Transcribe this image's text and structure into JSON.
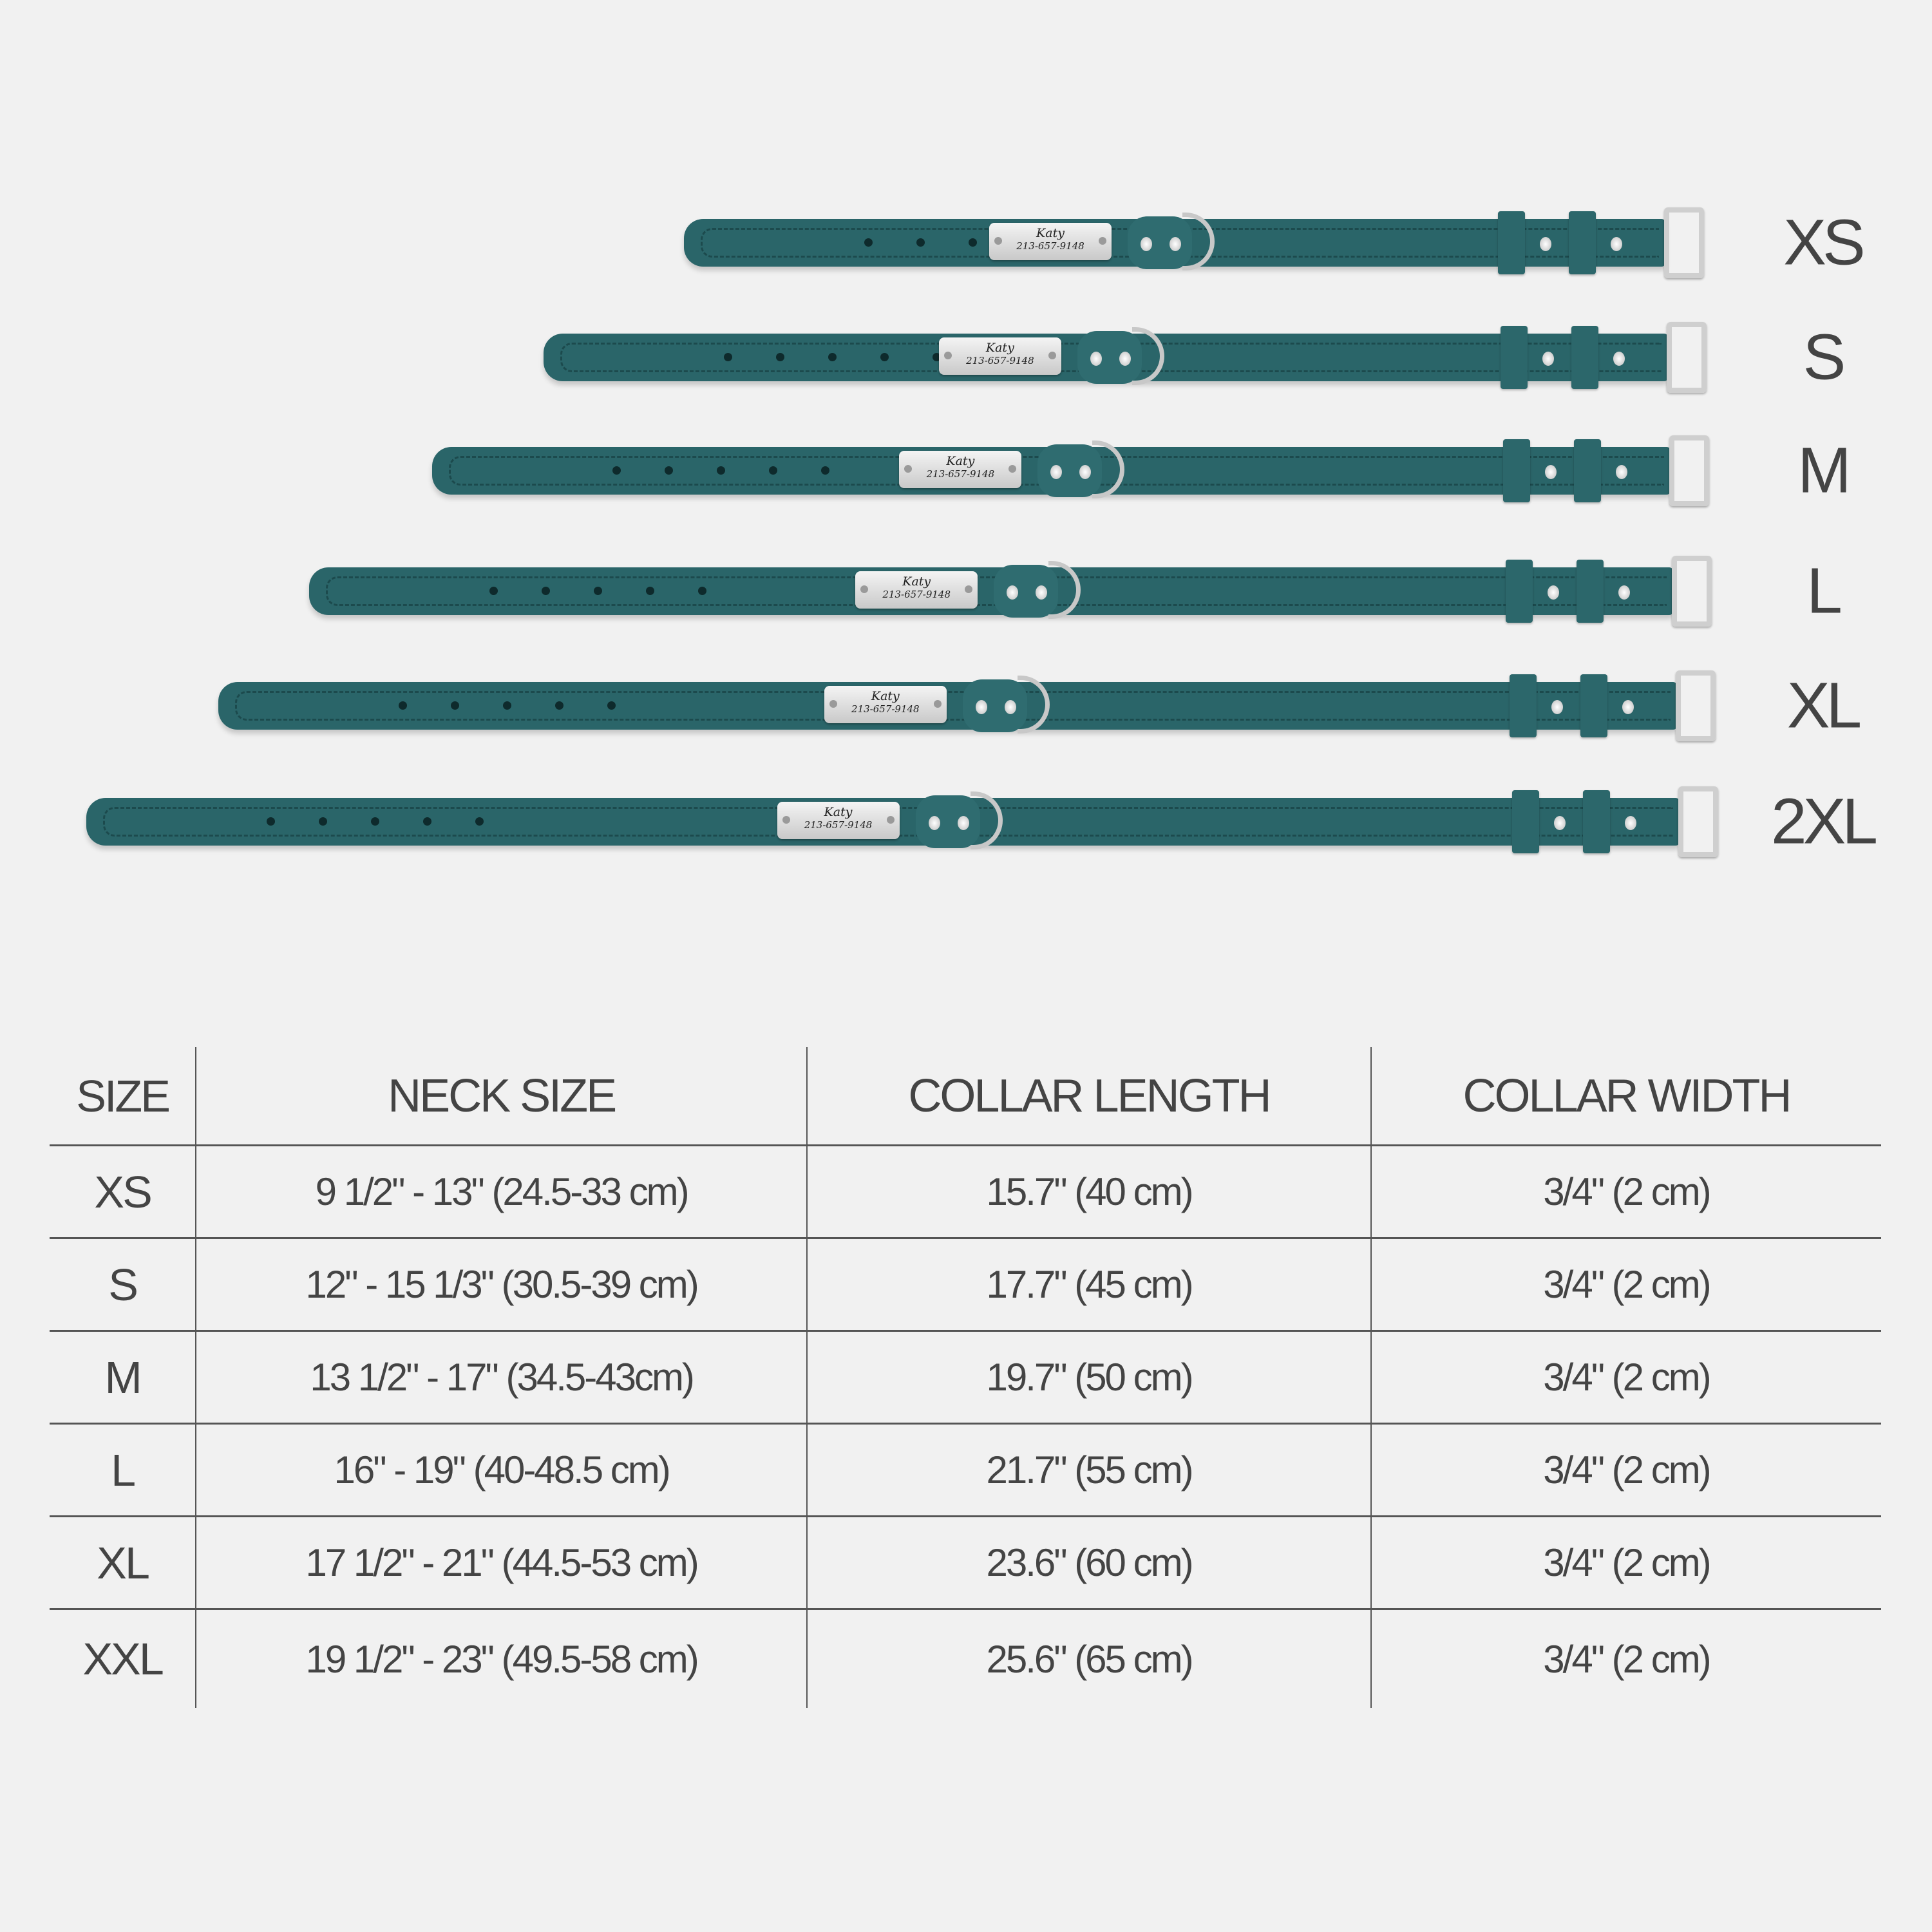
{
  "collar_color": "#2a6569",
  "collars": [
    {
      "size": "XS",
      "tag_name": "Katy",
      "tag_phone": "213-657-9148"
    },
    {
      "size": "S",
      "tag_name": "Katy",
      "tag_phone": "213-657-9148"
    },
    {
      "size": "M",
      "tag_name": "Katy",
      "tag_phone": "213-657-9148"
    },
    {
      "size": "L",
      "tag_name": "Katy",
      "tag_phone": "213-657-9148"
    },
    {
      "size": "XL",
      "tag_name": "Katy",
      "tag_phone": "213-657-9148"
    },
    {
      "size": "2XL",
      "tag_name": "Katy",
      "tag_phone": "213-657-9148"
    }
  ],
  "table": {
    "headers": [
      "SIZE",
      "NECK SIZE",
      "COLLAR LENGTH",
      "COLLAR WIDTH"
    ],
    "rows": [
      [
        "XS",
        "9 1/2\" - 13\" (24.5-33 cm)",
        "15.7\" (40 cm)",
        "3/4\" (2 cm)"
      ],
      [
        "S",
        "12\" - 15 1/3\" (30.5-39 cm)",
        "17.7\" (45 cm)",
        "3/4\" (2 cm)"
      ],
      [
        "M",
        "13 1/2\" - 17\" (34.5-43cm)",
        "19.7\" (50 cm)",
        "3/4\" (2 cm)"
      ],
      [
        "L",
        "16\" - 19\" (40-48.5 cm)",
        "21.7\" (55 cm)",
        "3/4\" (2 cm)"
      ],
      [
        "XL",
        "17 1/2\" - 21\" (44.5-53 cm)",
        "23.6\" (60 cm)",
        "3/4\" (2 cm)"
      ],
      [
        "XXL",
        "19 1/2\" - 23\" (49.5-58 cm)",
        "25.6\" (65 cm)",
        "3/4\" (2 cm)"
      ]
    ]
  }
}
